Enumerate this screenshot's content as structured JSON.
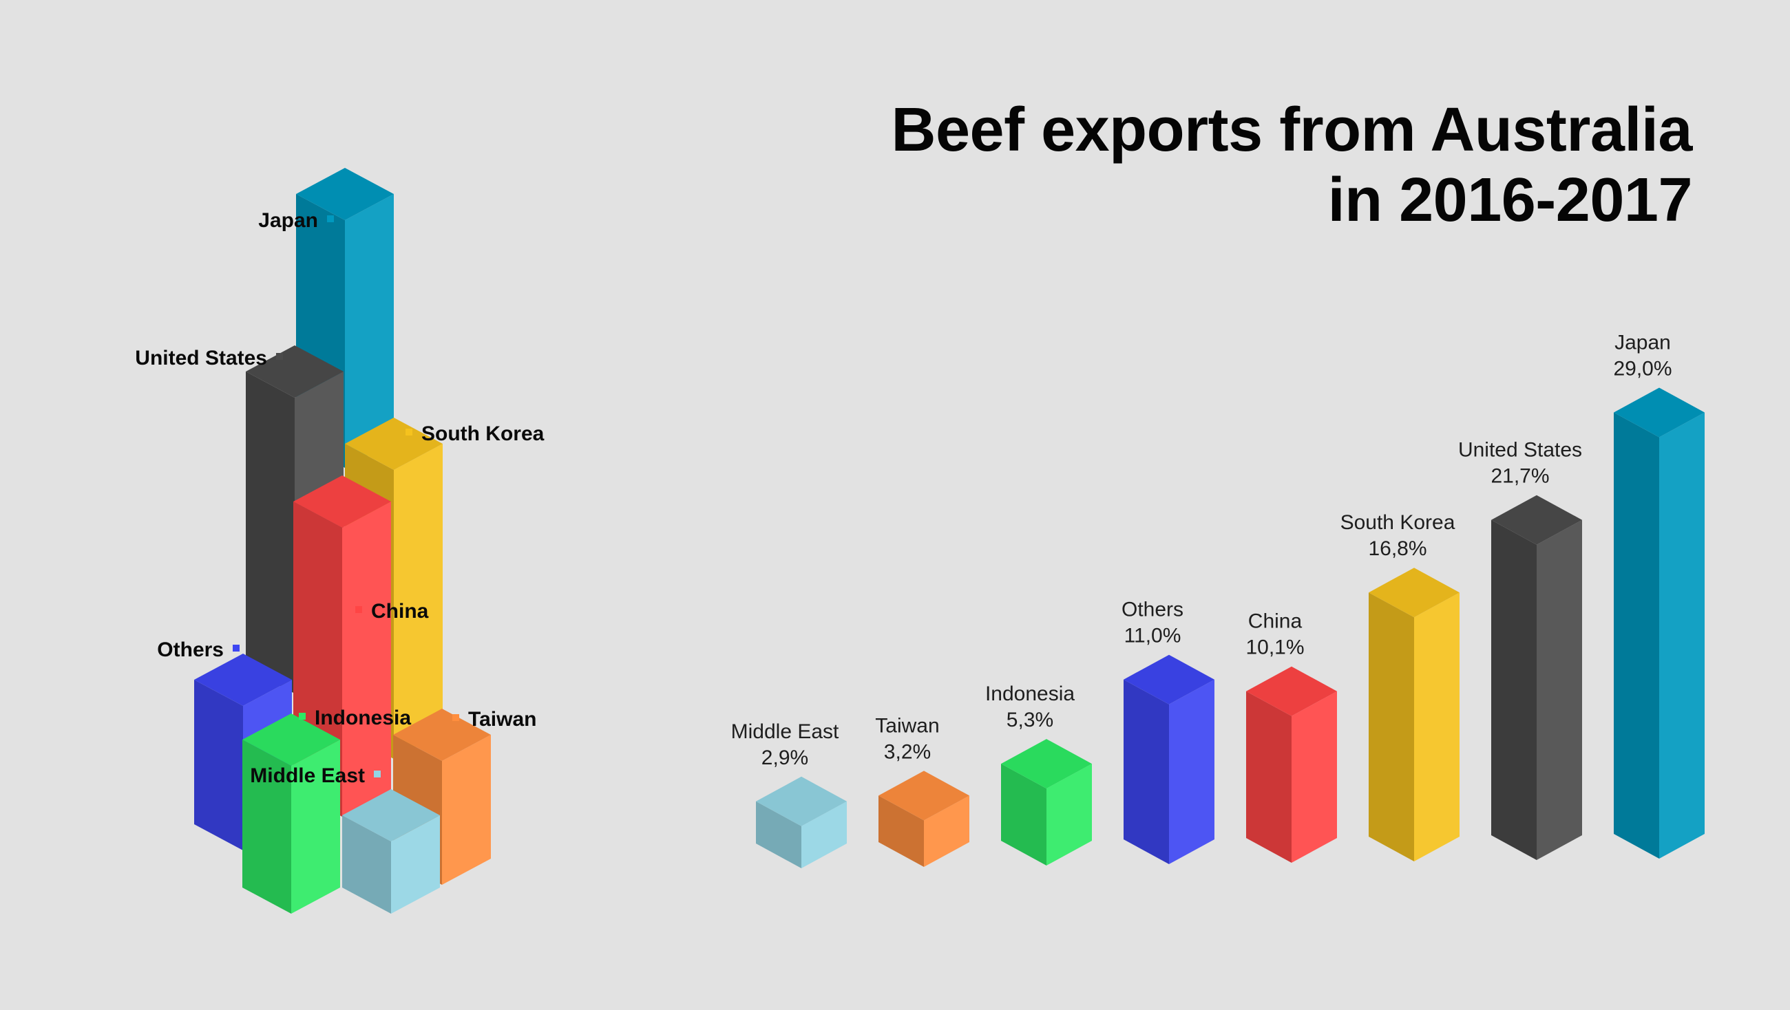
{
  "title": {
    "line1": "Beef exports from Australia",
    "line2": "in 2016-2017"
  },
  "chart_data": {
    "type": "bar",
    "title": "Beef exports from Australia in 2016-2017",
    "categories": [
      "Middle East",
      "Taiwan",
      "Indonesia",
      "Others",
      "China",
      "South Korea",
      "United States",
      "Japan"
    ],
    "values": [
      2.9,
      3.2,
      5.3,
      11.0,
      10.1,
      16.8,
      21.7,
      29.0
    ],
    "value_labels": [
      "2,9%",
      "3,2%",
      "5,3%",
      "11,0%",
      "10,1%",
      "16,8%",
      "21,7%",
      "29,0%"
    ],
    "unit": "%",
    "colors": {
      "Middle East": "#93d5e4",
      "Taiwan": "#ff8e3e",
      "Indonesia": "#2dea64",
      "Others": "#3d46f2",
      "China": "#ff4545",
      "South Korea": "#f5c21e",
      "United States": "#4b4b4b",
      "Japan": "#0099bf"
    },
    "style": "isometric-3d-bars",
    "grid": false,
    "legend": "none",
    "cluster_labels": [
      "Japan",
      "United States",
      "South Korea",
      "China",
      "Others",
      "Indonesia",
      "Taiwan",
      "Middle East"
    ]
  }
}
